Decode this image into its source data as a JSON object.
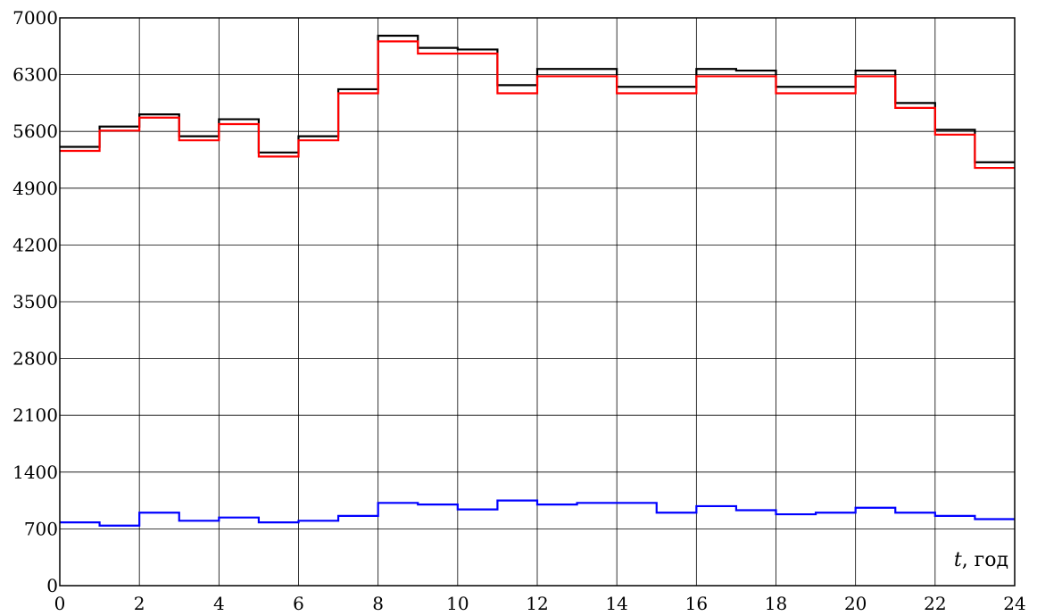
{
  "chart_data": {
    "type": "line",
    "step": true,
    "title": "",
    "xlabel_var": "t",
    "xlabel_unit": ", год",
    "ylabel": "",
    "xlim": [
      0,
      24
    ],
    "ylim": [
      0,
      7000
    ],
    "x_ticks": [
      0,
      2,
      4,
      6,
      8,
      10,
      12,
      14,
      16,
      18,
      20,
      22,
      24
    ],
    "y_ticks": [
      0,
      700,
      1400,
      2100,
      2800,
      3500,
      4200,
      4900,
      5600,
      6300,
      7000
    ],
    "grid": true,
    "legend": false,
    "x": [
      0,
      1,
      2,
      3,
      4,
      5,
      6,
      7,
      8,
      9,
      10,
      11,
      12,
      13,
      14,
      15,
      16,
      17,
      18,
      19,
      20,
      21,
      22,
      23
    ],
    "series": [
      {
        "color": "#000000",
        "values": [
          5410,
          5660,
          5810,
          5540,
          5750,
          5340,
          5540,
          6120,
          6780,
          6630,
          6610,
          6170,
          6370,
          6370,
          6150,
          6150,
          6370,
          6350,
          6150,
          6150,
          6350,
          5950,
          5620,
          5220
        ]
      },
      {
        "color": "#ff0000",
        "values": [
          5360,
          5610,
          5770,
          5490,
          5690,
          5290,
          5490,
          6070,
          6710,
          6560,
          6560,
          6070,
          6280,
          6280,
          6070,
          6070,
          6280,
          6280,
          6070,
          6070,
          6280,
          5890,
          5560,
          5150
        ]
      },
      {
        "color": "#0000ff",
        "values": [
          780,
          740,
          900,
          800,
          840,
          780,
          800,
          860,
          1020,
          1000,
          940,
          1050,
          1000,
          1020,
          1020,
          900,
          980,
          930,
          880,
          900,
          960,
          900,
          860,
          820
        ]
      }
    ]
  }
}
